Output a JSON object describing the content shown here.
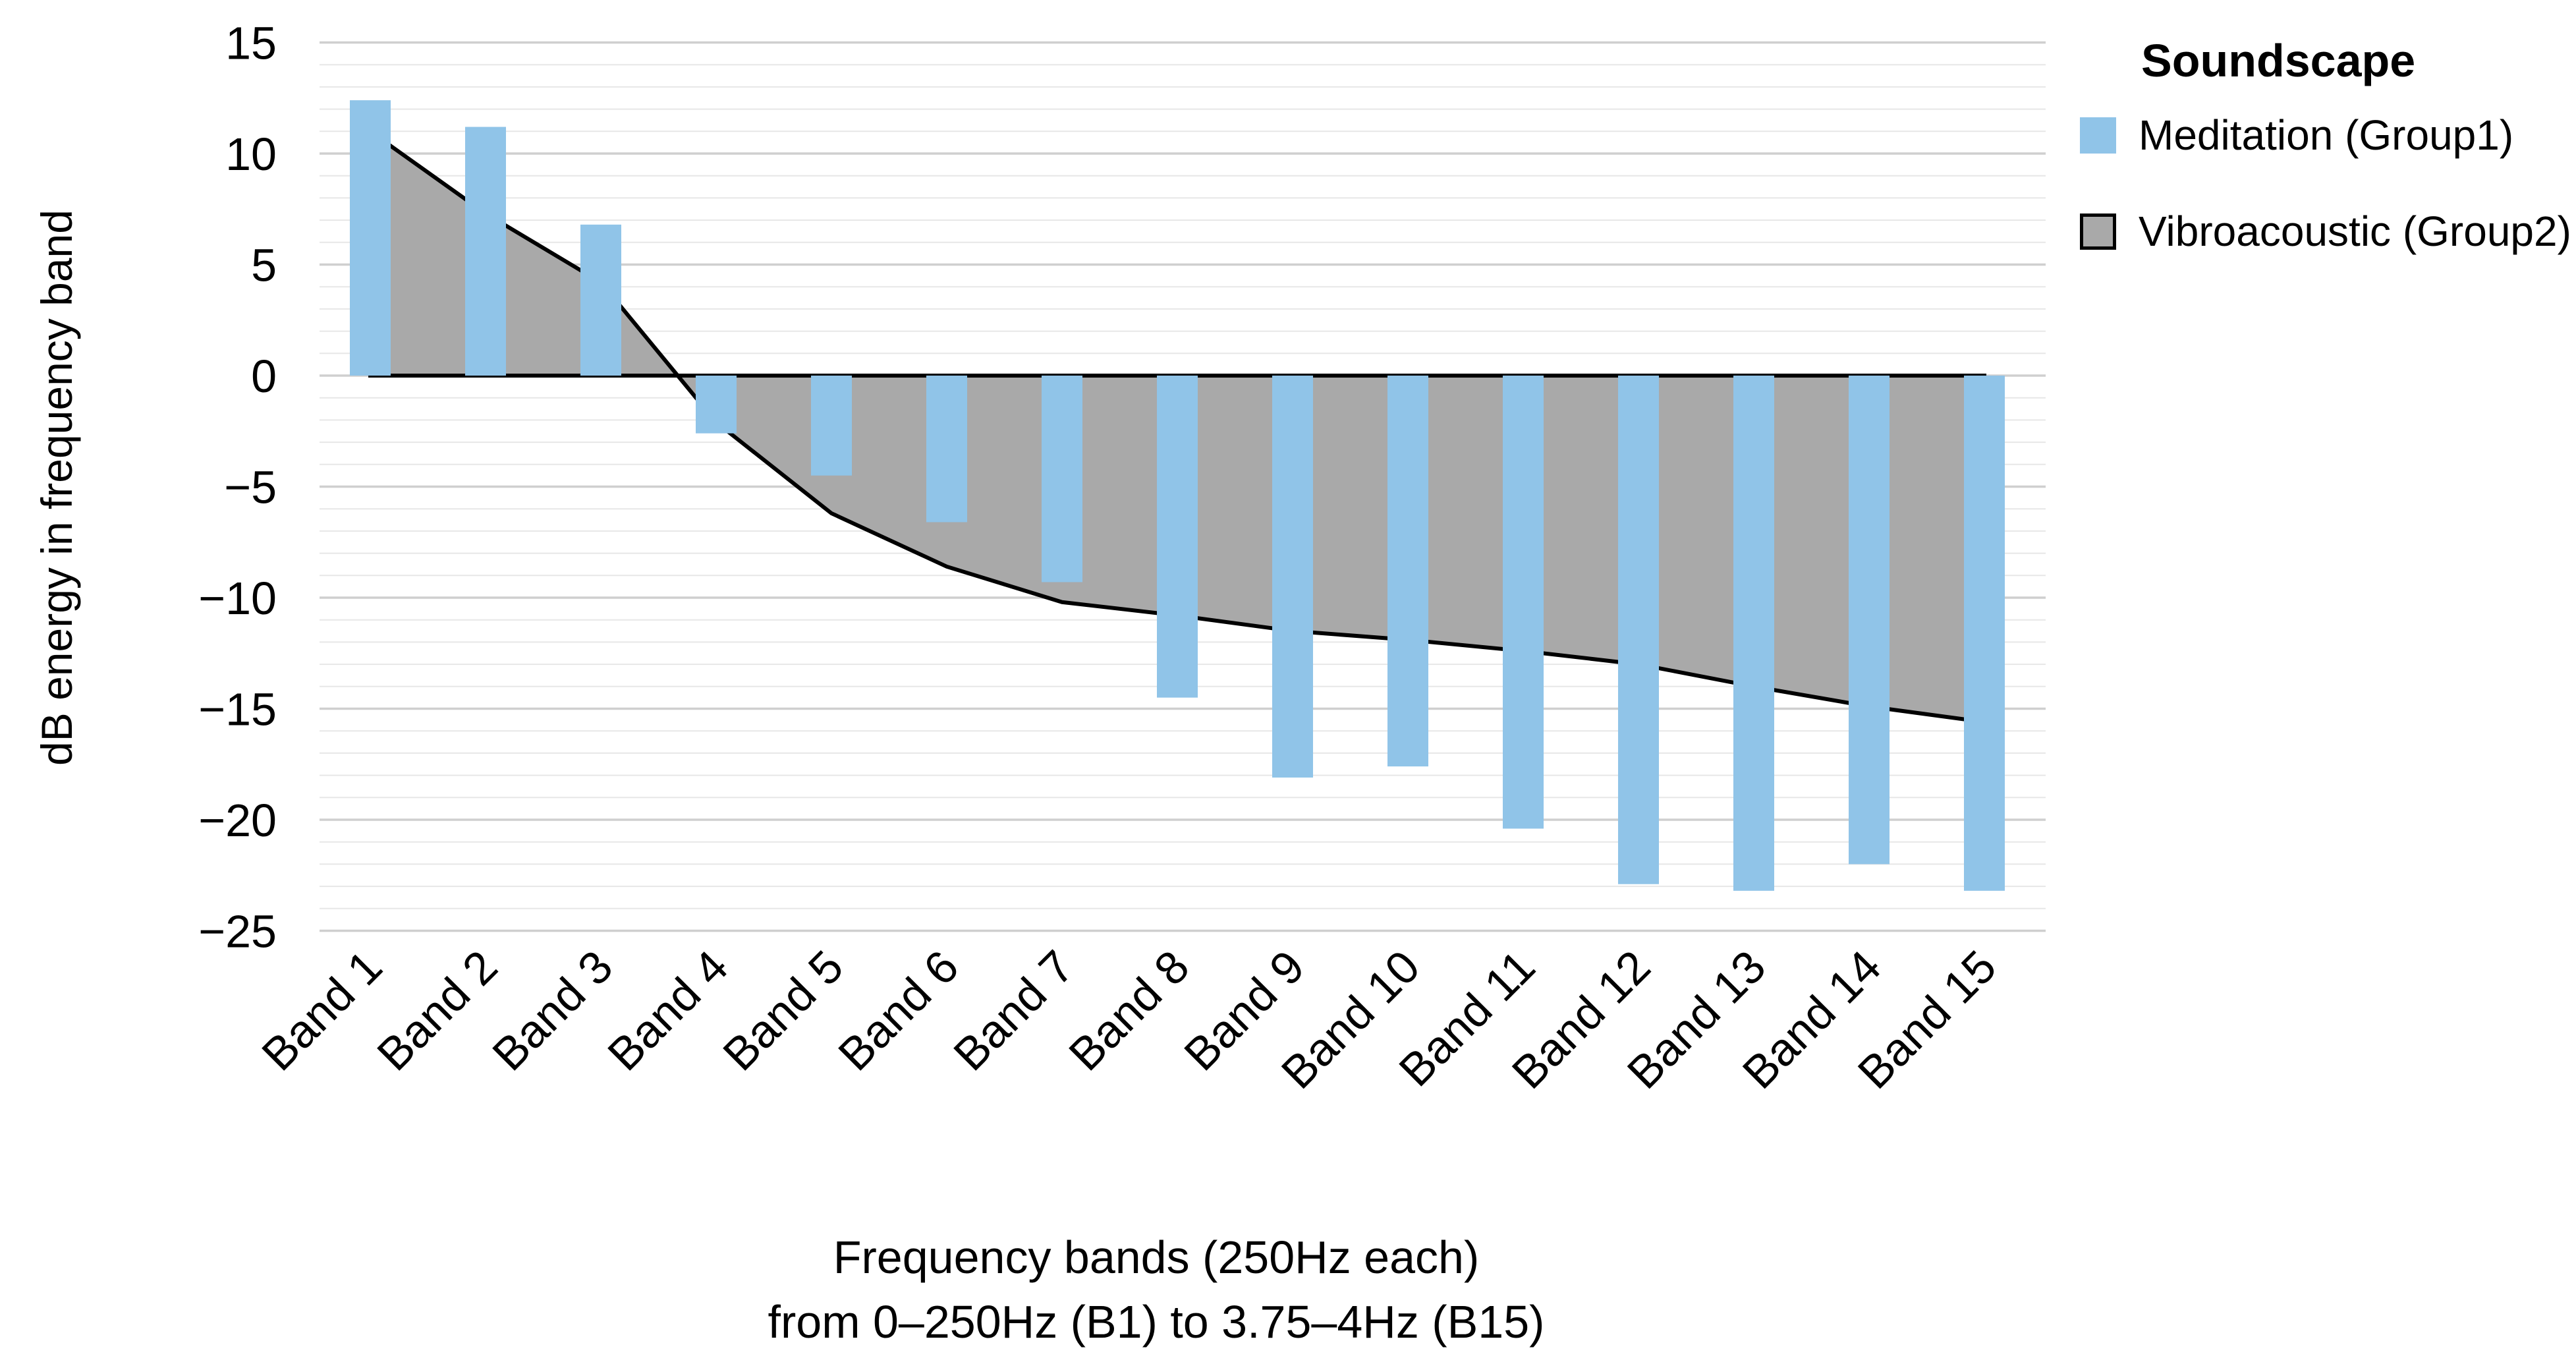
{
  "chart_data": {
    "type": "bar",
    "title": "",
    "categories": [
      "Band 1",
      "Band 2",
      "Band 3",
      "Band 4",
      "Band 5",
      "Band 6",
      "Band 7",
      "Band 8",
      "Band 9",
      "Band 10",
      "Band 11",
      "Band 12",
      "Band 13",
      "Band 14",
      "Band 15"
    ],
    "series": [
      {
        "name": "Meditation (Group1)",
        "type": "bar",
        "color": "#90c4e8",
        "values": [
          12.4,
          11.2,
          6.8,
          -2.6,
          -4.5,
          -6.6,
          -9.3,
          -14.5,
          -18.1,
          -17.6,
          -20.4,
          -22.9,
          -23.2,
          -22.0,
          -23.2
        ]
      },
      {
        "name": "Vibroacoustic (Group2)",
        "type": "area",
        "fill": "#a9a9a9",
        "stroke": "#000000",
        "values": [
          11.0,
          7.3,
          4.2,
          -2.1,
          -6.2,
          -8.6,
          -10.2,
          -10.8,
          -11.5,
          -11.9,
          -12.4,
          -13.0,
          -14.0,
          -14.9,
          -15.6
        ]
      }
    ],
    "baseline": 0,
    "xlabel_line1": "Frequency bands (250Hz each)",
    "xlabel_line2": "from 0–250Hz (B1) to 3.75–4Hz (B15)",
    "ylabel": "dB energy in frequency band",
    "ylim": [
      -25,
      15
    ],
    "yticks": [
      {
        "value": 15,
        "label": "15"
      },
      {
        "value": 10,
        "label": "10"
      },
      {
        "value": 5,
        "label": "5"
      },
      {
        "value": 0,
        "label": "0"
      },
      {
        "value": -5,
        "label": "−5"
      },
      {
        "value": -10,
        "label": "−10"
      },
      {
        "value": -15,
        "label": "−15"
      },
      {
        "value": -20,
        "label": "−20"
      },
      {
        "value": -25,
        "label": "−25"
      }
    ],
    "minor_grid_step": 1,
    "grid": {
      "orientation": "horizontal",
      "major_color": "#cfcfcf",
      "minor_color": "#e7e7e7"
    },
    "legend": {
      "title": "Soundscape",
      "position": "right-top",
      "entries": [
        {
          "label": "Meditation (Group1)",
          "swatch_color": "#90c4e8",
          "swatch_border": "none"
        },
        {
          "label": "Vibroacoustic (Group2)",
          "swatch_color": "#a9a9a9",
          "swatch_border": "#000000"
        }
      ]
    }
  }
}
